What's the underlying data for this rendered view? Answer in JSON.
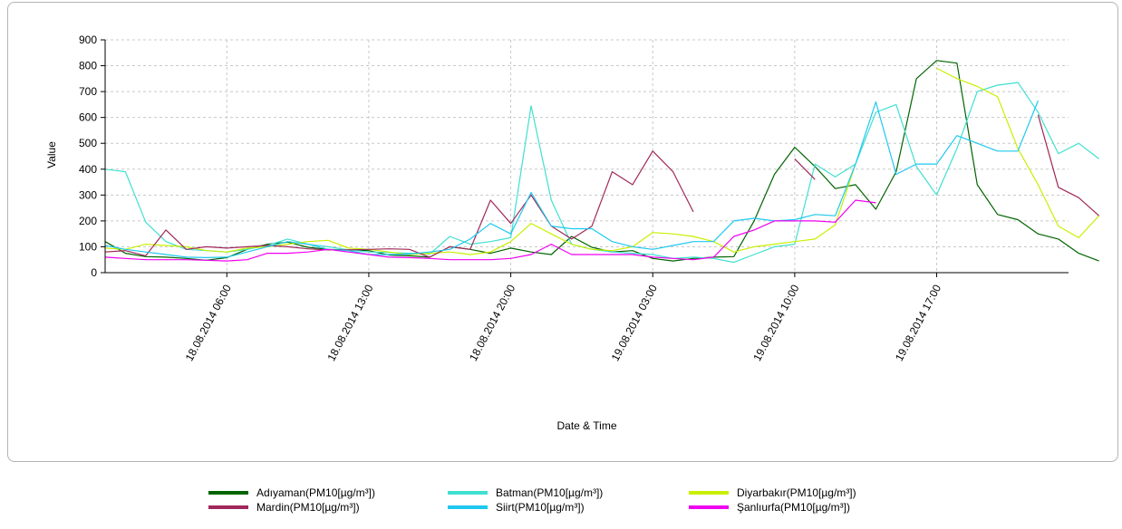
{
  "chart_data": {
    "type": "line",
    "xlabel": "Date & Time",
    "ylabel": "Value",
    "ylim": [
      0,
      900
    ],
    "yticks": [
      0,
      100,
      200,
      300,
      400,
      500,
      600,
      700,
      800,
      900
    ],
    "x_start": "18.08.2014 00:00",
    "x_interval_hours": 1,
    "xticks": [
      {
        "label": "18.08.2014 06:00",
        "x": 6
      },
      {
        "label": "18.08.2014 13:00",
        "x": 13
      },
      {
        "label": "18.08.2014 20:00",
        "x": 20
      },
      {
        "label": "19.08.2014 03:00",
        "x": 27
      },
      {
        "label": "19.08.2014 10:00",
        "x": 34
      },
      {
        "label": "19.08.2014 17:00",
        "x": 41
      }
    ],
    "xlim": [
      0,
      47.5
    ],
    "grid": true,
    "legend_position": "bottom",
    "series": [
      {
        "name": "Adıyaman(PM10[µg/m³])",
        "color": "#006400",
        "values": [
          120,
          75,
          62,
          60,
          55,
          48,
          58,
          90,
          110,
          118,
          98,
          90,
          88,
          85,
          68,
          65,
          60,
          100,
          90,
          75,
          95,
          80,
          70,
          140,
          98,
          80,
          85,
          55,
          45,
          55,
          60,
          62,
          200,
          380,
          485,
          410,
          325,
          340,
          245,
          390,
          750,
          820,
          810,
          340,
          225,
          205,
          150,
          130,
          75,
          45
        ]
      },
      {
        "name": "Batman(PM10[µg/m³])",
        "color": "#40E0D0",
        "values": [
          400,
          390,
          195,
          120,
          90,
          85,
          80,
          90,
          105,
          130,
          110,
          100,
          88,
          80,
          78,
          75,
          72,
          140,
          110,
          120,
          135,
          645,
          280,
          110,
          90,
          80,
          75,
          70,
          55,
          60,
          55,
          40,
          70,
          100,
          110,
          420,
          370,
          420,
          620,
          650,
          410,
          300,
          480,
          700,
          725,
          735,
          620,
          460,
          500,
          440
        ]
      },
      {
        "name": "Diyarbakır(PM10[µg/m³])",
        "color": "#C8F000",
        "values": [
          95,
          90,
          110,
          105,
          100,
          85,
          80,
          95,
          100,
          110,
          120,
          125,
          95,
          90,
          80,
          70,
          75,
          80,
          70,
          80,
          120,
          190,
          150,
          110,
          90,
          85,
          100,
          155,
          150,
          140,
          120,
          80,
          100,
          110,
          120,
          130,
          185,
          420,
          null,
          null,
          null,
          790,
          750,
          720,
          680,
          480,
          340,
          180,
          135,
          220
        ]
      },
      {
        "name": "Mardin(PM10[µg/m³])",
        "color": "#A0285A",
        "values": [
          80,
          85,
          65,
          165,
          90,
          100,
          95,
          100,
          105,
          100,
          92,
          88,
          88,
          90,
          92,
          90,
          60,
          100,
          90,
          280,
          190,
          300,
          180,
          130,
          180,
          390,
          340,
          470,
          390,
          235,
          null,
          null,
          null,
          null,
          440,
          360,
          null,
          null,
          null,
          null,
          null,
          null,
          null,
          null,
          null,
          null,
          610,
          330,
          290,
          220
        ]
      },
      {
        "name": "Siirt(PM10[µg/m³])",
        "color": "#1EC8F0",
        "values": [
          105,
          90,
          80,
          70,
          60,
          58,
          60,
          80,
          100,
          120,
          110,
          90,
          85,
          70,
          70,
          72,
          80,
          90,
          130,
          190,
          150,
          310,
          180,
          170,
          170,
          120,
          100,
          90,
          105,
          120,
          120,
          200,
          210,
          200,
          205,
          225,
          220,
          420,
          660,
          380,
          420,
          420,
          530,
          500,
          470,
          470,
          665,
          null,
          null,
          null
        ]
      },
      {
        "name": "Şanlıurfa(PM10[µg/m³])",
        "color": "#F000F0",
        "values": [
          60,
          55,
          50,
          50,
          50,
          48,
          45,
          50,
          75,
          75,
          80,
          90,
          80,
          70,
          60,
          58,
          55,
          50,
          50,
          50,
          55,
          70,
          110,
          70,
          70,
          70,
          70,
          60,
          55,
          50,
          60,
          140,
          165,
          200,
          200,
          200,
          195,
          280,
          270,
          null,
          null,
          null,
          null,
          null,
          null,
          null,
          null,
          null,
          null,
          null
        ]
      }
    ]
  }
}
